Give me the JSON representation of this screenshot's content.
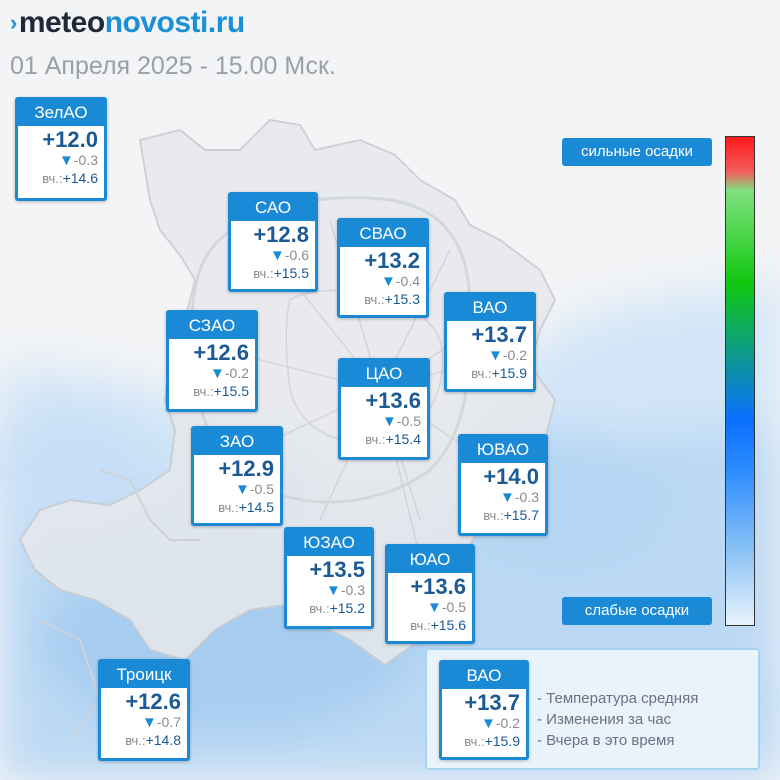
{
  "header": {
    "logo_mark": "›",
    "logo_part1": "meteo",
    "logo_part2": "novosti.ru",
    "subtitle": "01 Апреля 2025 - 15.00 Мск."
  },
  "districts": [
    {
      "id": "zelao",
      "name": "ЗелАО",
      "temp": "+12.0",
      "change": "-0.3",
      "yesterday_label": "вч.:",
      "yesterday": "+14.6"
    },
    {
      "id": "sao",
      "name": "САО",
      "temp": "+12.8",
      "change": "-0.6",
      "yesterday_label": "вч.:",
      "yesterday": "+15.5"
    },
    {
      "id": "svao",
      "name": "СВАО",
      "temp": "+13.2",
      "change": "-0.4",
      "yesterday_label": "вч.:",
      "yesterday": "+15.3"
    },
    {
      "id": "vao",
      "name": "ВАО",
      "temp": "+13.7",
      "change": "-0.2",
      "yesterday_label": "вч.:",
      "yesterday": "+15.9"
    },
    {
      "id": "szao",
      "name": "СЗАО",
      "temp": "+12.6",
      "change": "-0.2",
      "yesterday_label": "вч.:",
      "yesterday": "+15.5"
    },
    {
      "id": "cao",
      "name": "ЦАО",
      "temp": "+13.6",
      "change": "-0.5",
      "yesterday_label": "вч.:",
      "yesterday": "+15.4"
    },
    {
      "id": "zao",
      "name": "ЗАО",
      "temp": "+12.9",
      "change": "-0.5",
      "yesterday_label": "вч.:",
      "yesterday": "+14.5"
    },
    {
      "id": "yuvao",
      "name": "ЮВАО",
      "temp": "+14.0",
      "change": "-0.3",
      "yesterday_label": "вч.:",
      "yesterday": "+15.7"
    },
    {
      "id": "yuzao",
      "name": "ЮЗАО",
      "temp": "+13.5",
      "change": "-0.3",
      "yesterday_label": "вч.:",
      "yesterday": "+15.2"
    },
    {
      "id": "yuao",
      "name": "ЮАО",
      "temp": "+13.6",
      "change": "-0.5",
      "yesterday_label": "вч.:",
      "yesterday": "+15.6"
    },
    {
      "id": "troitsk",
      "name": "Троицк",
      "temp": "+12.6",
      "change": "-0.7",
      "yesterday_label": "вч.:",
      "yesterday": "+14.8"
    }
  ],
  "precip_scale": {
    "top_label": "сильные осадки",
    "bottom_label": "слабые осадки"
  },
  "legend": {
    "sample": {
      "name": "ВАО",
      "temp": "+13.7",
      "change": "-0.2",
      "yesterday_label": "вч.:",
      "yesterday": "+15.9"
    },
    "items": [
      "- Температура средняя",
      "- Изменения за час",
      "- Вчера в это время"
    ]
  },
  "colors": {
    "accent": "#1a8ad6",
    "temp_text": "#1b5a94",
    "precip_light": "#bcdcf6"
  }
}
